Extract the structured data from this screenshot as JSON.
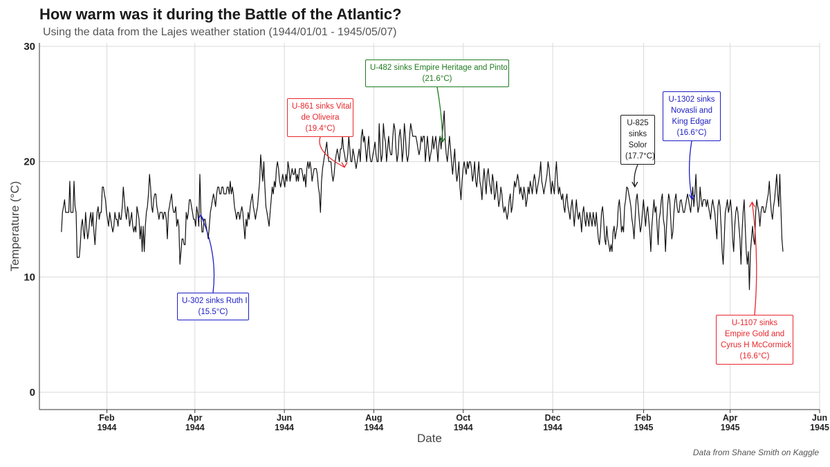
{
  "header": {
    "title": "How warm was it during the Battle of the Atlantic?",
    "subtitle": "Using the data from the Lajes weather station (1944/01/01 - 1945/05/07)",
    "caption": "Data from Shane Smith on Kaggle"
  },
  "chart_data": {
    "type": "line",
    "title": "How warm was it during the Battle of the Atlantic?",
    "subtitle": "Using the data from the Lajes weather station (1944/01/01 - 1945/05/07)",
    "xlabel": "Date",
    "ylabel": "Temperature (°C)",
    "x_start": "1944-01-01",
    "x_end": "1945-05-07",
    "xlim": [
      "1943-12-17",
      "1945-06-01"
    ],
    "ylim": [
      -1.5,
      30.3
    ],
    "grid": true,
    "y_ticks": [
      {
        "value": 0,
        "label": "0"
      },
      {
        "value": 10,
        "label": "10"
      },
      {
        "value": 20,
        "label": "20"
      },
      {
        "value": 30,
        "label": "30"
      }
    ],
    "x_ticks": [
      {
        "date": "1944-02-01",
        "line1": "Feb",
        "line2": "1944"
      },
      {
        "date": "1944-04-01",
        "line1": "Apr",
        "line2": "1944"
      },
      {
        "date": "1944-06-01",
        "line1": "Jun",
        "line2": "1944"
      },
      {
        "date": "1944-08-01",
        "line1": "Aug",
        "line2": "1944"
      },
      {
        "date": "1944-10-01",
        "line1": "Oct",
        "line2": "1944"
      },
      {
        "date": "1944-12-01",
        "line1": "Dec",
        "line2": "1944"
      },
      {
        "date": "1945-02-01",
        "line1": "Feb",
        "line2": "1945"
      },
      {
        "date": "1945-04-01",
        "line1": "Apr",
        "line2": "1945"
      },
      {
        "date": "1945-06-01",
        "line1": "Jun",
        "line2": "1945"
      }
    ],
    "series": [
      {
        "values": [
          13.9,
          15.6,
          16.1,
          16.7,
          15.6,
          15.6,
          15.6,
          15.6,
          18.3,
          15.6,
          15.6,
          15.6,
          18.3,
          16.1,
          15.6,
          11.7,
          11.7,
          11.7,
          12.8,
          14.4,
          15.0,
          13.9,
          13.3,
          15.6,
          14.4,
          13.3,
          13.9,
          15.0,
          15.6,
          14.4,
          15.6,
          13.9,
          12.8,
          14.4,
          15.6,
          16.1,
          15.0,
          15.6,
          15.6,
          17.8,
          17.8,
          17.2,
          16.7,
          15.6,
          15.0,
          14.4,
          15.6,
          15.0,
          14.4,
          13.9,
          14.4,
          15.6,
          15.0,
          15.0,
          14.4,
          15.6,
          15.0,
          15.0,
          16.1,
          17.8,
          16.7,
          15.6,
          15.0,
          16.1,
          15.6,
          14.4,
          15.0,
          15.6,
          14.4,
          13.9,
          14.4,
          13.9,
          16.1,
          15.6,
          15.0,
          13.3,
          14.4,
          12.2,
          14.4,
          12.2,
          14.4,
          15.6,
          16.1,
          17.2,
          18.9,
          17.8,
          16.1,
          15.6,
          16.7,
          17.2,
          17.2,
          16.1,
          15.6,
          15.0,
          15.6,
          15.6,
          15.6,
          15.0,
          15.6,
          15.6,
          15.0,
          13.3,
          15.6,
          16.1,
          16.7,
          17.2,
          16.1,
          15.6,
          15.6,
          16.1,
          14.4,
          15.0,
          14.4,
          11.1,
          12.2,
          13.3,
          13.3,
          12.8,
          12.8,
          15.6,
          15.0,
          15.6,
          16.7,
          16.7,
          16.1,
          15.6,
          15.0,
          15.0,
          14.4,
          16.1,
          15.5,
          14.4,
          18.9,
          15.6,
          13.9,
          13.9,
          15.0,
          15.0,
          14.4,
          13.9,
          13.3,
          14.4,
          15.6,
          16.1,
          16.7,
          17.2,
          16.7,
          16.1,
          17.2,
          17.8,
          17.8,
          17.2,
          17.2,
          17.8,
          17.8,
          17.2,
          17.2,
          17.2,
          17.8,
          17.8,
          17.2,
          18.3,
          17.2,
          17.8,
          17.2,
          16.1,
          15.6,
          15.0,
          15.6,
          15.6,
          15.0,
          15.6,
          16.1,
          15.6,
          14.4,
          13.3,
          15.0,
          14.4,
          15.6,
          15.0,
          16.1,
          16.7,
          17.2,
          16.1,
          15.6,
          15.0,
          15.6,
          16.1,
          17.2,
          18.3,
          20.6,
          19.4,
          18.3,
          20.0,
          17.8,
          16.1,
          15.6,
          15.0,
          14.4,
          15.6,
          16.7,
          17.8,
          17.2,
          18.3,
          17.8,
          19.4,
          20.0,
          19.4,
          18.3,
          17.8,
          18.3,
          18.9,
          18.3,
          17.8,
          18.9,
          18.3,
          20.0,
          19.4,
          18.3,
          18.9,
          19.4,
          18.9,
          18.9,
          19.4,
          18.3,
          18.9,
          18.3,
          19.4,
          19.4,
          19.4,
          18.9,
          18.3,
          18.9,
          17.8,
          19.4,
          20.0,
          19.4,
          20.0,
          19.4,
          18.3,
          18.9,
          19.4,
          19.4,
          19.4,
          18.9,
          17.8,
          17.2,
          15.6,
          18.3,
          19.4,
          20.0,
          20.6,
          21.1,
          21.7,
          20.6,
          20.0,
          20.0,
          20.0,
          18.9,
          18.3,
          18.9,
          20.0,
          20.6,
          21.1,
          20.6,
          20.0,
          21.1,
          21.1,
          22.2,
          21.1,
          20.6,
          20.0,
          20.0,
          20.6,
          22.2,
          21.1,
          20.0,
          20.0,
          21.1,
          20.6,
          20.0,
          19.4,
          20.0,
          20.6,
          21.1,
          20.0,
          22.2,
          22.8,
          21.7,
          22.2,
          21.1,
          20.0,
          21.1,
          22.2,
          20.6,
          20.0,
          20.0,
          20.6,
          21.1,
          21.7,
          20.6,
          20.0,
          20.0,
          23.3,
          21.1,
          20.0,
          20.6,
          23.3,
          22.2,
          21.7,
          20.0,
          21.1,
          22.2,
          21.1,
          20.6,
          20.6,
          22.2,
          23.3,
          22.8,
          21.1,
          20.0,
          20.6,
          22.2,
          22.8,
          21.7,
          20.0,
          21.1,
          23.3,
          22.2,
          20.6,
          20.0,
          20.6,
          22.2,
          23.3,
          22.8,
          22.2,
          22.2,
          22.2,
          22.2,
          21.7,
          21.1,
          20.6,
          21.1,
          22.2,
          21.7,
          22.2,
          22.2,
          20.0,
          21.1,
          22.2,
          21.1,
          20.0,
          20.6,
          21.1,
          22.2,
          21.1,
          21.7,
          22.2,
          21.1,
          20.0,
          21.6,
          22.2,
          21.1,
          22.2,
          23.3,
          24.4,
          21.7,
          20.6,
          20.0,
          21.1,
          22.2,
          21.1,
          20.0,
          18.9,
          20.0,
          21.1,
          19.4,
          18.3,
          18.9,
          20.0,
          17.8,
          16.7,
          18.3,
          19.4,
          20.0,
          19.4,
          18.9,
          20.0,
          19.4,
          20.0,
          20.0,
          19.4,
          18.3,
          18.9,
          20.0,
          18.3,
          17.8,
          18.9,
          20.0,
          18.3,
          17.8,
          16.7,
          18.3,
          19.4,
          18.3,
          17.2,
          18.9,
          19.4,
          18.3,
          17.8,
          17.2,
          18.9,
          18.3,
          16.7,
          17.2,
          18.3,
          17.2,
          16.1,
          16.7,
          17.8,
          17.2,
          16.1,
          15.6,
          16.1,
          15.6,
          15.0,
          15.6,
          16.7,
          17.2,
          15.6,
          16.1,
          17.2,
          18.3,
          17.8,
          18.3,
          18.9,
          18.3,
          17.2,
          17.8,
          17.2,
          16.7,
          17.8,
          17.2,
          16.1,
          16.7,
          17.8,
          17.2,
          18.3,
          17.8,
          17.2,
          18.3,
          18.9,
          18.3,
          17.2,
          17.8,
          18.3,
          18.9,
          20.0,
          18.3,
          17.8,
          17.2,
          17.8,
          18.3,
          18.9,
          20.0,
          19.4,
          18.3,
          17.2,
          18.3,
          17.8,
          17.2,
          18.9,
          20.0,
          18.3,
          17.2,
          17.8,
          17.2,
          16.7,
          17.2,
          16.1,
          15.6,
          16.7,
          17.2,
          16.1,
          15.6,
          15.0,
          16.1,
          16.7,
          15.6,
          14.4,
          15.6,
          16.7,
          15.6,
          15.0,
          15.6,
          15.0,
          13.9,
          15.6,
          16.1,
          15.0,
          14.4,
          15.6,
          15.0,
          14.4,
          15.6,
          15.0,
          14.4,
          15.6,
          15.0,
          14.4,
          15.6,
          14.4,
          13.3,
          12.8,
          13.9,
          15.6,
          16.1,
          15.0,
          13.3,
          12.8,
          14.4,
          13.3,
          12.8,
          12.2,
          12.8,
          12.2,
          13.9,
          14.4,
          13.3,
          13.9,
          14.4,
          16.1,
          16.7,
          15.6,
          13.9,
          14.4,
          13.9,
          16.1,
          16.7,
          17.8,
          17.7,
          17.2,
          16.7,
          16.1,
          15.0,
          14.4,
          13.3,
          15.0,
          16.7,
          17.2,
          16.1,
          15.0,
          13.9,
          14.4,
          15.6,
          16.7,
          15.6,
          14.4,
          15.6,
          16.1,
          15.0,
          13.9,
          12.2,
          14.4,
          15.6,
          16.7,
          15.6,
          16.1,
          14.4,
          12.8,
          15.0,
          15.6,
          16.7,
          17.2,
          15.0,
          14.4,
          12.2,
          14.4,
          16.1,
          17.2,
          16.7,
          15.0,
          13.3,
          13.9,
          15.6,
          16.7,
          17.2,
          16.1,
          15.6,
          15.6,
          16.6,
          16.7,
          16.1,
          15.6,
          15.6,
          16.1,
          16.7,
          17.2,
          16.7,
          16.1,
          15.6,
          16.7,
          17.8,
          16.1,
          17.2,
          18.9,
          16.7,
          15.6,
          16.1,
          17.8,
          16.7,
          16.1,
          16.7,
          16.7,
          16.7,
          16.1,
          16.7,
          16.1,
          15.6,
          15.0,
          16.1,
          16.7,
          16.1,
          15.6,
          14.4,
          13.3,
          16.1,
          16.7,
          16.1,
          14.4,
          12.2,
          11.1,
          13.3,
          15.6,
          16.1,
          16.7,
          15.6,
          16.1,
          16.7,
          15.6,
          13.3,
          12.2,
          14.4,
          15.6,
          16.1,
          15.6,
          14.4,
          13.3,
          11.1,
          13.9,
          15.6,
          16.7,
          14.4,
          12.2,
          11.1,
          12.2,
          8.9,
          12.2,
          13.3,
          14.4,
          13.3,
          12.8,
          15.6,
          16.7,
          16.1,
          15.6,
          14.4,
          15.6,
          16.1,
          16.1,
          15.6,
          15.6,
          16.1,
          16.7,
          17.2,
          18.3,
          16.7,
          15.6,
          15.0,
          16.1,
          16.7,
          17.8,
          18.9,
          17.2,
          16.1,
          18.9,
          16.1,
          13.3,
          12.2
        ]
      }
    ],
    "annotations": [
      {
        "date": "1944-04-05",
        "value": 15.5,
        "text_lines": [
          "U-302 sinks Ruth I",
          "(15.5°C)"
        ],
        "color": "#1c1cc4"
      },
      {
        "date": "1944-07-12",
        "value": 19.4,
        "text_lines": [
          "U-861 sinks Vital",
          "de Oliveira",
          "(19.4°C)"
        ],
        "color": "#e8262c"
      },
      {
        "date": "1944-09-17",
        "value": 21.6,
        "text_lines": [
          "U-482 sinks Empire Heritage and Pinto",
          "(21.6°C)"
        ],
        "color": "#1f7a1f"
      },
      {
        "date": "1945-01-26",
        "value": 17.7,
        "text_lines": [
          "U-825",
          "sinks",
          "Solor",
          "(17.7°C)"
        ],
        "color": "#1a1a1a"
      },
      {
        "date": "1945-03-06",
        "value": 16.6,
        "text_lines": [
          "U-1302 sinks",
          "Novasli and",
          "King Edgar",
          "(16.6°C)"
        ],
        "color": "#1c1cc4"
      },
      {
        "date": "1945-04-16",
        "value": 16.6,
        "text_lines": [
          "U-1107 sinks",
          "Empire Gold and",
          "Cyrus H McCormick",
          "(16.6°C)"
        ],
        "color": "#e8262c"
      }
    ]
  }
}
